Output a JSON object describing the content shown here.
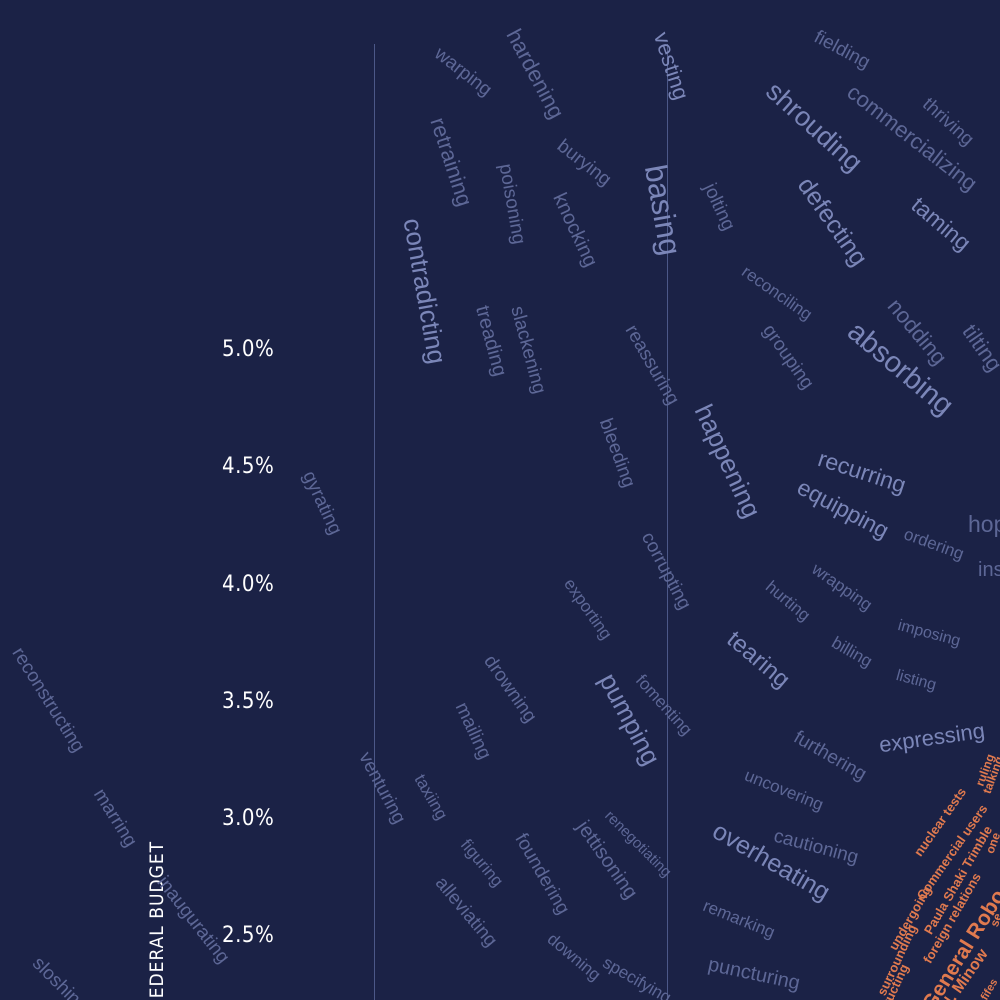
{
  "axis": {
    "title": "FEDERAL BUDGET",
    "ticks": [
      "5.0%",
      "4.5%",
      "4.0%",
      "3.5%",
      "3.0%",
      "2.5%"
    ]
  },
  "words": [
    "fielding",
    "commercializing",
    "thriving",
    "shrouding",
    "defecting",
    "taming",
    "absorbing",
    "nodding",
    "tilting",
    "recurring",
    "equipping",
    "ordering",
    "hop",
    "ins",
    "happening",
    "reconciling",
    "grouping",
    "jolting",
    "basing",
    "vesting",
    "hardening",
    "burying",
    "warping",
    "retraining",
    "poisoning",
    "knocking",
    "contradicting",
    "treading",
    "slackening",
    "reassuring",
    "bleeding",
    "corrupting",
    "gyrating",
    "exporting",
    "wrapping",
    "hurting",
    "imposing",
    "billing",
    "listing",
    "tearing",
    "fomenting",
    "pumping",
    "drowning",
    "mailing",
    "expressing",
    "furthering",
    "uncovering",
    "cautioning",
    "overheating",
    "remarking",
    "puncturing",
    "renegotiating",
    "jettisoning",
    "foundering",
    "downing",
    "specifying",
    "venturing",
    "taxiing",
    "figuring",
    "alleviating",
    "reconstructing",
    "marring",
    "inaugurating",
    "sloshing"
  ],
  "highlighted_words": [
    "nuclear tests",
    "Commercial users",
    "Paula Shaki Trimble",
    "ruling",
    "talking",
    "one",
    "foreign relations",
    "undergoing",
    "surrounding",
    "General Robo",
    "N. Minow",
    "structing",
    "fifes",
    "se"
  ],
  "colors": {
    "background": "#1b2246",
    "word": "#5d6796",
    "highlight": "#e07a4f",
    "axis": "#ffffff"
  }
}
